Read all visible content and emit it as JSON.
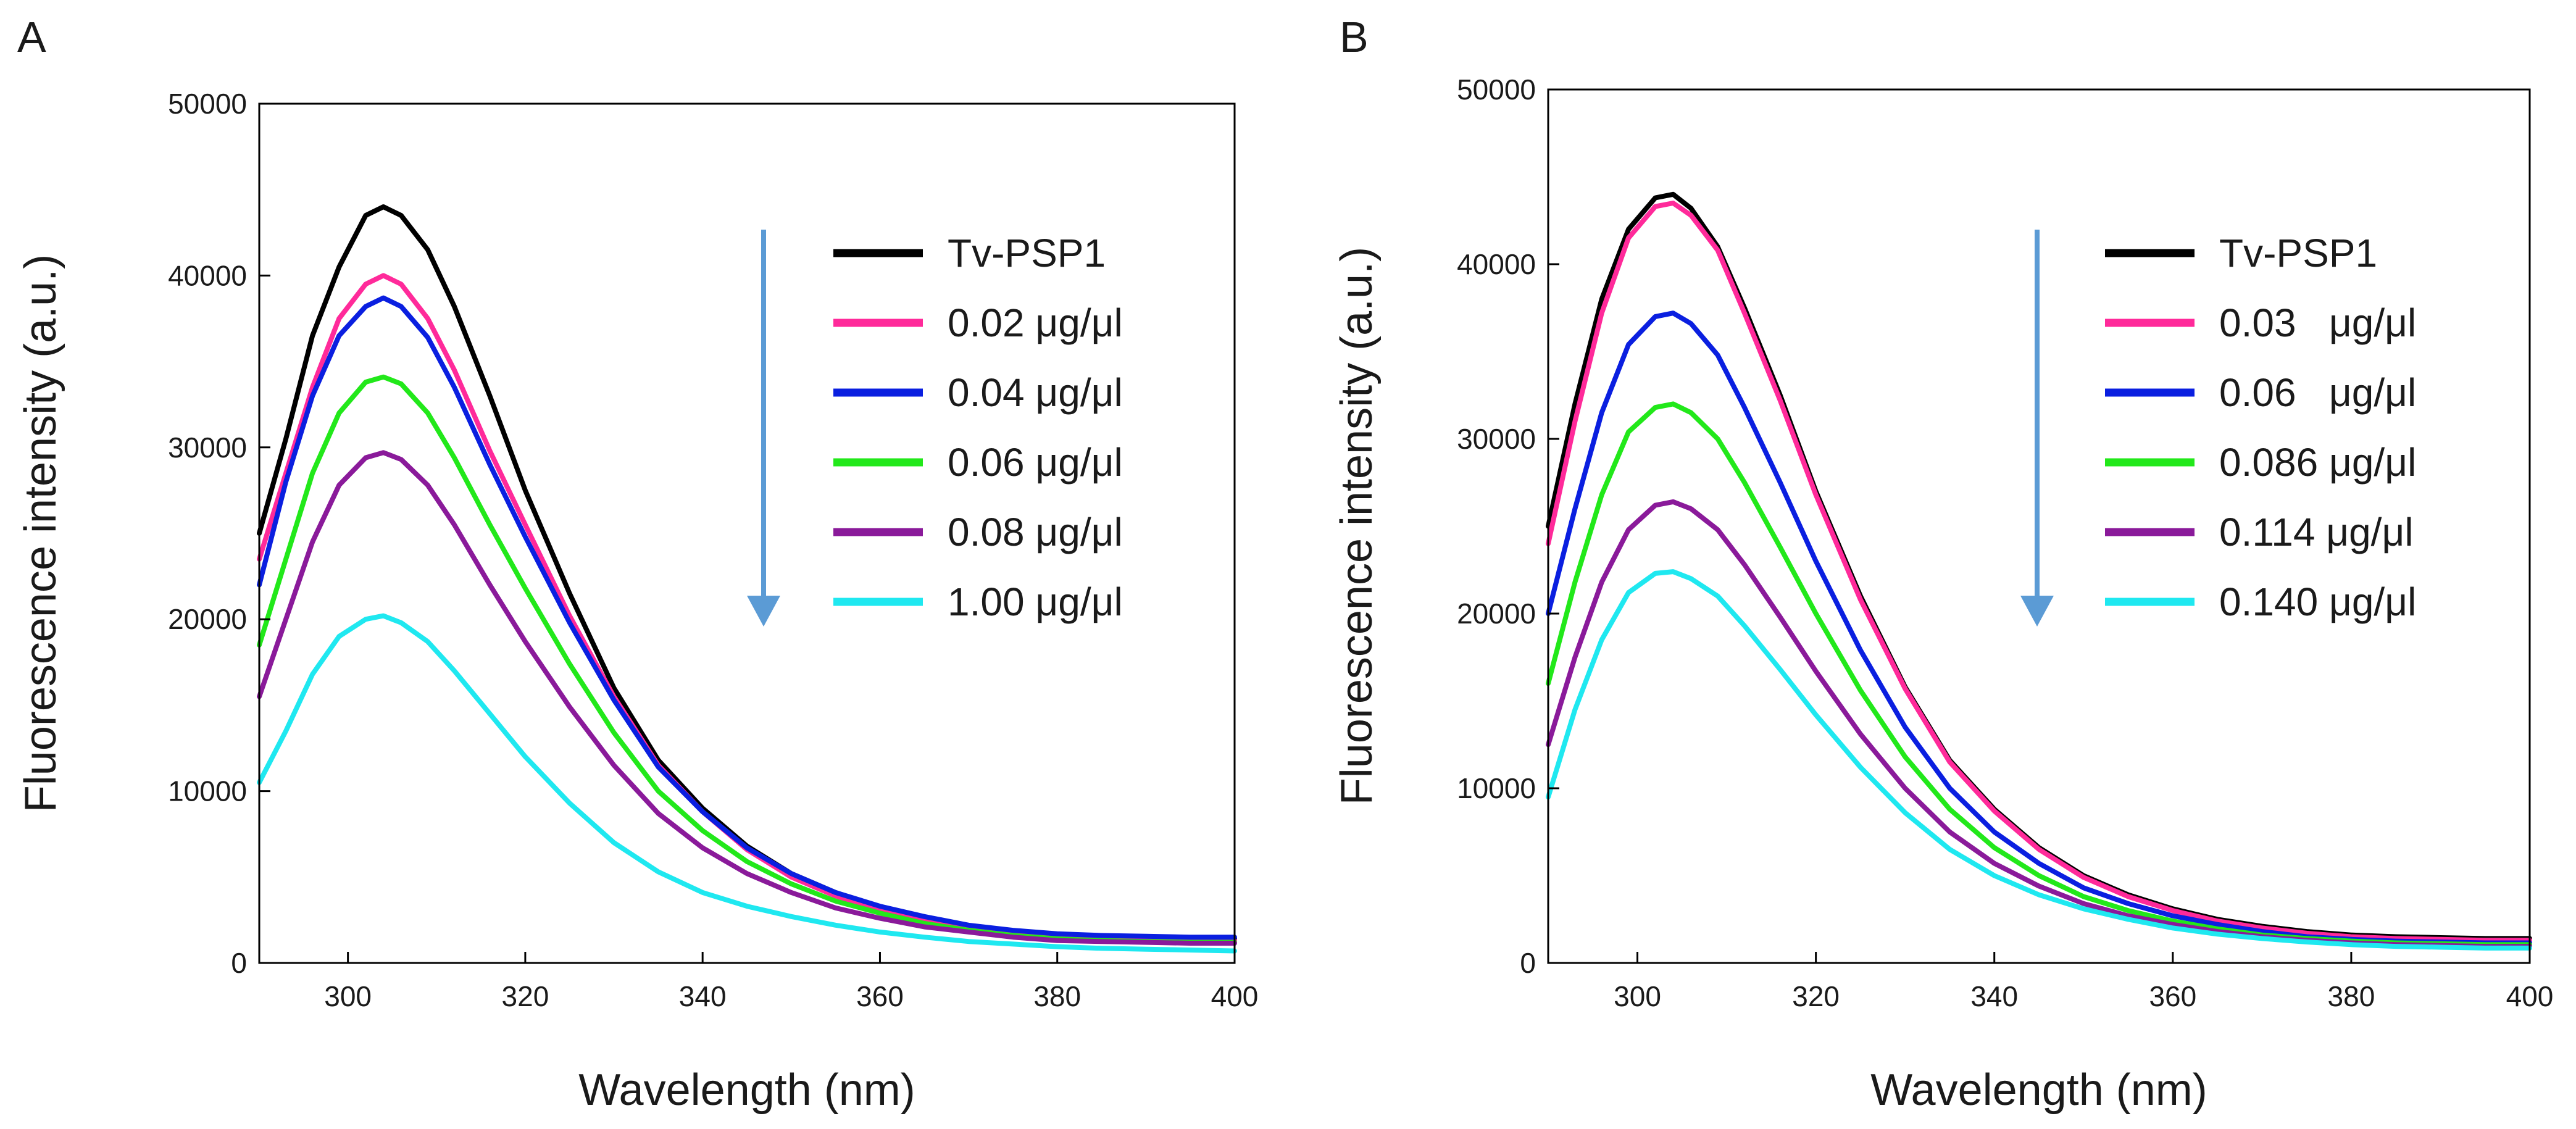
{
  "chart_data": [
    {
      "type": "line",
      "panel_label": "A",
      "xlabel": "Wavelength (nm)",
      "ylabel": "Fluorescence intensity (a.u.)",
      "xlim": [
        290,
        400
      ],
      "ylim": [
        0,
        50000
      ],
      "x_ticks": [
        300,
        320,
        340,
        360,
        380,
        400
      ],
      "y_ticks": [
        0,
        10000,
        20000,
        30000,
        40000,
        50000
      ],
      "x_tick_labels": [
        "300",
        "320",
        "340",
        "360",
        "380",
        "400"
      ],
      "y_tick_labels": [
        "0",
        "10000",
        "20000",
        "30000",
        "40000",
        "50000"
      ],
      "legend_position": "top-right",
      "annotation": "downward arrow indicating decreasing fluorescence with increasing concentration",
      "grid": false,
      "series": [
        {
          "name": "Tv-PSP1",
          "color": "#000000",
          "x": [
            290,
            293,
            296,
            299,
            302,
            304,
            306,
            309,
            312,
            316,
            320,
            325,
            330,
            335,
            340,
            345,
            350,
            355,
            360,
            365,
            370,
            375,
            380,
            385,
            390,
            395,
            400
          ],
          "y": [
            25000,
            30500,
            36500,
            40500,
            43500,
            44000,
            43500,
            41500,
            38200,
            33000,
            27500,
            21500,
            16000,
            11800,
            9000,
            6800,
            5200,
            4100,
            3200,
            2600,
            2100,
            1800,
            1600,
            1500,
            1450,
            1400,
            1400
          ]
        },
        {
          "name": "0.02 μg/μl",
          "color": "#ff2a9a",
          "x": [
            290,
            293,
            296,
            299,
            302,
            304,
            306,
            309,
            312,
            316,
            320,
            325,
            330,
            335,
            340,
            345,
            350,
            355,
            360,
            365,
            370,
            375,
            380,
            385,
            390,
            395,
            400
          ],
          "y": [
            23500,
            28500,
            33500,
            37500,
            39500,
            40000,
            39500,
            37500,
            34500,
            29800,
            25500,
            20200,
            15500,
            11500,
            8800,
            6600,
            5000,
            3900,
            3100,
            2500,
            2000,
            1700,
            1500,
            1400,
            1350,
            1300,
            1300
          ]
        },
        {
          "name": "0.04 μg/μl",
          "color": "#0a1fe0",
          "x": [
            290,
            293,
            296,
            299,
            302,
            304,
            306,
            309,
            312,
            316,
            320,
            325,
            330,
            335,
            340,
            345,
            350,
            355,
            360,
            365,
            370,
            375,
            380,
            385,
            390,
            395,
            400
          ],
          "y": [
            22000,
            28000,
            33000,
            36500,
            38200,
            38700,
            38200,
            36400,
            33500,
            29000,
            24800,
            19800,
            15300,
            11400,
            8800,
            6700,
            5200,
            4100,
            3300,
            2700,
            2200,
            1900,
            1700,
            1600,
            1550,
            1500,
            1500
          ]
        },
        {
          "name": "0.06 μg/μl",
          "color": "#22e81a",
          "x": [
            290,
            293,
            296,
            299,
            302,
            304,
            306,
            309,
            312,
            316,
            320,
            325,
            330,
            335,
            340,
            345,
            350,
            355,
            360,
            365,
            370,
            375,
            380,
            385,
            390,
            395,
            400
          ],
          "y": [
            18500,
            23500,
            28500,
            32000,
            33800,
            34100,
            33700,
            32000,
            29400,
            25500,
            21800,
            17400,
            13400,
            10000,
            7700,
            5900,
            4600,
            3600,
            2900,
            2300,
            1900,
            1600,
            1400,
            1300,
            1250,
            1200,
            1200
          ]
        },
        {
          "name": "0.08 μg/μl",
          "color": "#8a1a9a",
          "x": [
            290,
            293,
            296,
            299,
            302,
            304,
            306,
            309,
            312,
            316,
            320,
            325,
            330,
            335,
            340,
            345,
            350,
            355,
            360,
            365,
            370,
            375,
            380,
            385,
            390,
            395,
            400
          ],
          "y": [
            15500,
            20000,
            24500,
            27800,
            29400,
            29700,
            29300,
            27800,
            25500,
            22000,
            18700,
            14900,
            11500,
            8700,
            6700,
            5200,
            4100,
            3200,
            2600,
            2100,
            1800,
            1500,
            1300,
            1250,
            1200,
            1150,
            1150
          ]
        },
        {
          "name": "1.00 μg/μl",
          "color": "#1fe8f0",
          "x": [
            290,
            293,
            296,
            299,
            302,
            304,
            306,
            309,
            312,
            316,
            320,
            325,
            330,
            335,
            340,
            345,
            350,
            355,
            360,
            365,
            370,
            375,
            380,
            385,
            390,
            395,
            400
          ],
          "y": [
            10500,
            13500,
            16800,
            19000,
            20000,
            20200,
            19800,
            18700,
            17000,
            14500,
            12000,
            9300,
            7000,
            5300,
            4100,
            3300,
            2700,
            2200,
            1800,
            1500,
            1250,
            1100,
            950,
            850,
            800,
            750,
            700
          ]
        }
      ]
    },
    {
      "type": "line",
      "panel_label": "B",
      "xlabel": "Wavelength (nm)",
      "ylabel": "Fluorescence intensity (a.u.)",
      "xlim": [
        290,
        400
      ],
      "ylim": [
        0,
        50000
      ],
      "x_ticks": [
        300,
        320,
        340,
        360,
        380,
        400
      ],
      "y_ticks": [
        0,
        10000,
        20000,
        30000,
        40000,
        50000
      ],
      "x_tick_labels": [
        "300",
        "320",
        "340",
        "360",
        "380",
        "400"
      ],
      "y_tick_labels": [
        "0",
        "10000",
        "20000",
        "30000",
        "40000",
        "50000"
      ],
      "legend_position": "top-right",
      "annotation": "downward arrow indicating decreasing fluorescence with increasing concentration",
      "grid": false,
      "series": [
        {
          "name": "Tv-PSP1",
          "color": "#000000",
          "x": [
            290,
            293,
            296,
            299,
            302,
            304,
            306,
            309,
            312,
            316,
            320,
            325,
            330,
            335,
            340,
            345,
            350,
            355,
            360,
            365,
            370,
            375,
            380,
            385,
            390,
            395,
            400
          ],
          "y": [
            25000,
            32000,
            38000,
            42000,
            43800,
            44000,
            43200,
            41000,
            37500,
            32500,
            27000,
            21000,
            15800,
            11600,
            8800,
            6600,
            5000,
            3900,
            3100,
            2500,
            2100,
            1800,
            1600,
            1500,
            1450,
            1400,
            1400
          ]
        },
        {
          "name": "0.03   μg/μl",
          "color": "#ff2a9a",
          "x": [
            290,
            293,
            296,
            299,
            302,
            304,
            306,
            309,
            312,
            316,
            320,
            325,
            330,
            335,
            340,
            345,
            350,
            355,
            360,
            365,
            370,
            375,
            380,
            385,
            390,
            395,
            400
          ],
          "y": [
            24000,
            31000,
            37200,
            41500,
            43300,
            43500,
            42800,
            40800,
            37200,
            32200,
            26800,
            20800,
            15700,
            11500,
            8700,
            6500,
            4900,
            3800,
            3000,
            2400,
            2000,
            1700,
            1500,
            1400,
            1350,
            1300,
            1300
          ]
        },
        {
          "name": "0.06   μg/μl",
          "color": "#0a1fe0",
          "x": [
            290,
            293,
            296,
            299,
            302,
            304,
            306,
            309,
            312,
            316,
            320,
            325,
            330,
            335,
            340,
            345,
            350,
            355,
            360,
            365,
            370,
            375,
            380,
            385,
            390,
            395,
            400
          ],
          "y": [
            20000,
            26000,
            31500,
            35400,
            37000,
            37200,
            36600,
            34800,
            31800,
            27500,
            23000,
            17900,
            13500,
            10000,
            7500,
            5700,
            4300,
            3400,
            2700,
            2200,
            1800,
            1500,
            1350,
            1250,
            1200,
            1150,
            1150
          ]
        },
        {
          "name": "0.086 μg/μl",
          "color": "#22e81a",
          "x": [
            290,
            293,
            296,
            299,
            302,
            304,
            306,
            309,
            312,
            316,
            320,
            325,
            330,
            335,
            340,
            345,
            350,
            355,
            360,
            365,
            370,
            375,
            380,
            385,
            390,
            395,
            400
          ],
          "y": [
            16000,
            21800,
            26800,
            30400,
            31800,
            32000,
            31500,
            30000,
            27500,
            23800,
            20000,
            15600,
            11800,
            8800,
            6600,
            5000,
            3800,
            3000,
            2400,
            1950,
            1600,
            1400,
            1250,
            1150,
            1100,
            1050,
            1050
          ]
        },
        {
          "name": "0.114 μg/μl",
          "color": "#8a1a9a",
          "x": [
            290,
            293,
            296,
            299,
            302,
            304,
            306,
            309,
            312,
            316,
            320,
            325,
            330,
            335,
            340,
            345,
            350,
            355,
            360,
            365,
            370,
            375,
            380,
            385,
            390,
            395,
            400
          ],
          "y": [
            12500,
            17500,
            21800,
            24800,
            26200,
            26400,
            26000,
            24800,
            22800,
            19800,
            16700,
            13100,
            10000,
            7500,
            5700,
            4400,
            3400,
            2700,
            2200,
            1800,
            1500,
            1300,
            1150,
            1050,
            1000,
            950,
            950
          ]
        },
        {
          "name": "0.140 μg/μl",
          "color": "#1fe8f0",
          "x": [
            290,
            293,
            296,
            299,
            302,
            304,
            306,
            309,
            312,
            316,
            320,
            325,
            330,
            335,
            340,
            345,
            350,
            355,
            360,
            365,
            370,
            375,
            380,
            385,
            390,
            395,
            400
          ],
          "y": [
            9500,
            14500,
            18500,
            21200,
            22300,
            22400,
            22000,
            21000,
            19300,
            16800,
            14200,
            11200,
            8600,
            6500,
            5000,
            3900,
            3100,
            2500,
            2000,
            1650,
            1400,
            1200,
            1050,
            950,
            900,
            850,
            850
          ]
        }
      ]
    }
  ]
}
